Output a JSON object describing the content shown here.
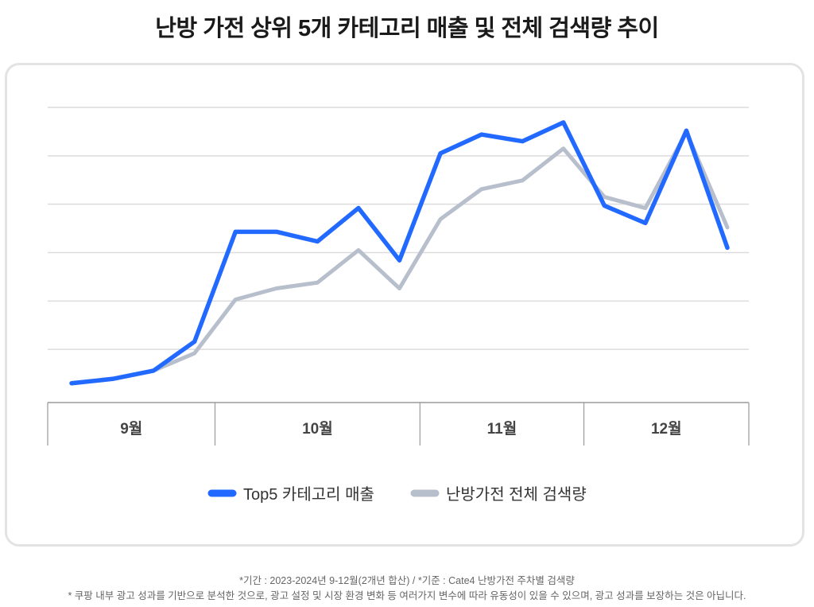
{
  "title": "난방 가전 상위 5개 카테고리 매출 및 전체 검색량 추이",
  "chart_data": {
    "type": "line",
    "title": "난방 가전 상위 5개 카테고리 매출 및 전체 검색량 추이",
    "xlabel": "",
    "ylabel": "",
    "x": [
      1,
      2,
      3,
      4,
      5,
      6,
      7,
      8,
      9,
      10,
      11,
      12,
      13,
      14,
      15,
      16,
      17
    ],
    "month_groups": [
      {
        "label": "9월",
        "from": 1,
        "to": 4
      },
      {
        "label": "10월",
        "from": 5,
        "to": 9
      },
      {
        "label": "11월",
        "from": 10,
        "to": 13
      },
      {
        "label": "12월",
        "from": 14,
        "to": 17
      }
    ],
    "ylim": [
      0,
      6
    ],
    "grid": true,
    "y_ticks": [
      1,
      2,
      3,
      4,
      5,
      6
    ],
    "series": [
      {
        "name": "Top5 카테고리 매출",
        "color": "#2269ff",
        "values": [
          0.3,
          0.39,
          0.56,
          1.16,
          3.43,
          3.43,
          3.23,
          3.92,
          2.84,
          5.05,
          5.44,
          5.3,
          5.69,
          3.97,
          3.61,
          5.52,
          3.1
        ]
      },
      {
        "name": "난방가전 전체 검색량",
        "color": "#b8bfcc",
        "values": [
          0.3,
          0.39,
          0.56,
          0.92,
          2.03,
          2.26,
          2.38,
          3.05,
          2.26,
          3.69,
          4.31,
          4.49,
          5.15,
          4.15,
          3.92,
          5.49,
          3.52
        ]
      }
    ],
    "legend_position": "bottom"
  },
  "notes": {
    "line1": "*기간 : 2023-2024년 9-12월(2개년 합산)  / *기준 : Cate4 난방가전 주차별 검색량",
    "line2": "* 쿠팡 내부 광고 성과를 기반으로 분석한 것으로, 광고 설정 및 시장 환경 변화 등 여러가지 변수에 따라 유동성이 있을 수 있으며, 광고 성과를 보장하는 것은 아닙니다."
  }
}
